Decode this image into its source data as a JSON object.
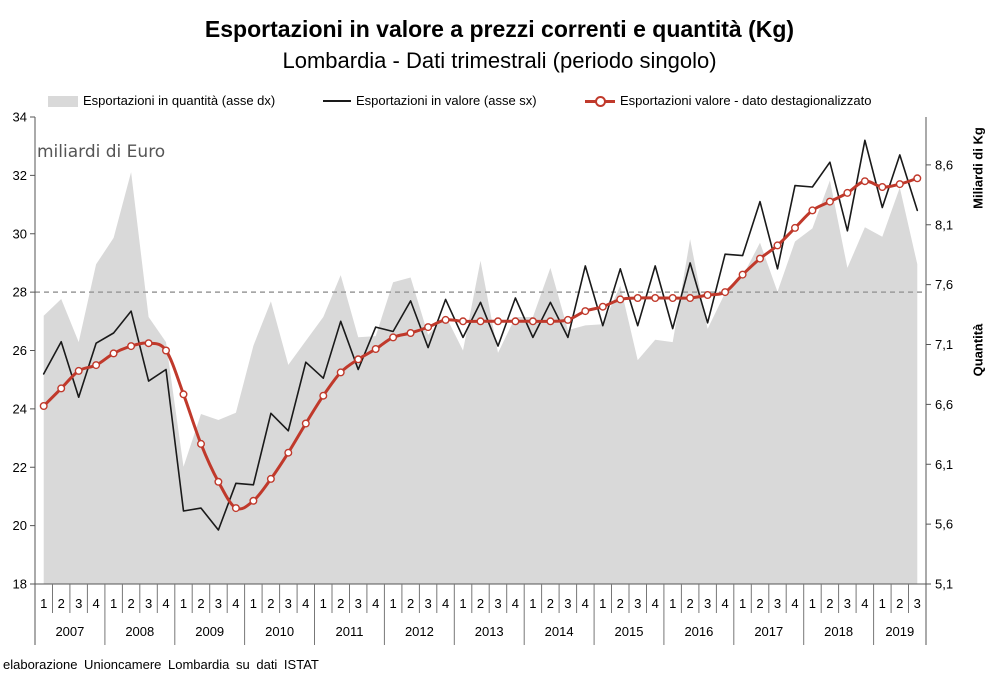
{
  "chart_data": {
    "type": "line",
    "title": "Esportazioni in valore a prezzi correnti e quantità (Kg)",
    "subtitle": "Lombardia - Dati trimestrali (periodo singolo)",
    "legend": {
      "placement": "top"
    },
    "grid": false,
    "y_left": {
      "label": "miliardi di Euro",
      "range": [
        18,
        34
      ],
      "ticks": [
        "18",
        "20",
        "22",
        "24",
        "26",
        "28",
        "30",
        "32",
        "34"
      ]
    },
    "y_right": {
      "labels": [
        "Miliardi di Kg",
        "Quantità"
      ],
      "range": [
        5.1,
        9.0
      ],
      "ticks": [
        "5,1",
        "5,6",
        "6,1",
        "6,6",
        "7,1",
        "7,6",
        "8,1",
        "8,6"
      ]
    },
    "reference_line": {
      "axis": "left",
      "value": 28,
      "style": "dashed",
      "color": "#9a9a9a"
    },
    "x": {
      "years": [
        {
          "label": "2007",
          "quarters": [
            "1",
            "2",
            "3",
            "4"
          ]
        },
        {
          "label": "2008",
          "quarters": [
            "1",
            "2",
            "3",
            "4"
          ]
        },
        {
          "label": "2009",
          "quarters": [
            "1",
            "2",
            "3",
            "4"
          ]
        },
        {
          "label": "2010",
          "quarters": [
            "1",
            "2",
            "3",
            "4"
          ]
        },
        {
          "label": "2011",
          "quarters": [
            "1",
            "2",
            "3",
            "4"
          ]
        },
        {
          "label": "2012",
          "quarters": [
            "1",
            "2",
            "3",
            "4"
          ]
        },
        {
          "label": "2013",
          "quarters": [
            "1",
            "2",
            "3",
            "4"
          ]
        },
        {
          "label": "2014",
          "quarters": [
            "1",
            "2",
            "3",
            "4"
          ]
        },
        {
          "label": "2015",
          "quarters": [
            "1",
            "2",
            "3",
            "4"
          ]
        },
        {
          "label": "2016",
          "quarters": [
            "1",
            "2",
            "3",
            "4"
          ]
        },
        {
          "label": "2017",
          "quarters": [
            "1",
            "2",
            "3",
            "4"
          ]
        },
        {
          "label": "2018",
          "quarters": [
            "1",
            "2",
            "3",
            "4"
          ]
        },
        {
          "label": "2019",
          "quarters": [
            "1",
            "2",
            "3"
          ]
        }
      ]
    },
    "series": [
      {
        "name": "Esportazioni in quantità (asse dx)",
        "type": "area",
        "axis": "right",
        "color": "#d9d9d9",
        "values": [
          7.34,
          7.48,
          7.12,
          7.77,
          7.99,
          8.54,
          7.33,
          7.12,
          6.08,
          6.52,
          6.47,
          6.53,
          7.09,
          7.46,
          6.93,
          7.13,
          7.33,
          7.68,
          7.16,
          7.17,
          7.62,
          7.66,
          7.18,
          7.34,
          7.05,
          7.8,
          7.03,
          7.33,
          7.33,
          7.74,
          7.22,
          7.26,
          7.27,
          7.59,
          6.97,
          7.14,
          7.12,
          7.98,
          7.23,
          7.53,
          7.67,
          7.95,
          7.54,
          7.96,
          8.07,
          8.47,
          7.74,
          8.08,
          8.0,
          8.41,
          7.77
        ]
      },
      {
        "name": "Esportazioni in valore (asse sx)",
        "type": "line",
        "axis": "left",
        "color": "#1a1a1a",
        "values": [
          25.2,
          26.3,
          24.4,
          26.25,
          26.6,
          27.35,
          24.95,
          25.35,
          20.5,
          20.6,
          19.85,
          21.45,
          21.4,
          23.85,
          23.25,
          25.6,
          25.05,
          27.0,
          25.35,
          26.8,
          26.65,
          27.7,
          26.1,
          27.75,
          26.45,
          27.65,
          26.15,
          27.8,
          26.45,
          27.65,
          26.45,
          28.9,
          26.85,
          28.8,
          26.85,
          28.9,
          26.75,
          29.0,
          26.95,
          29.3,
          29.25,
          31.1,
          28.8,
          31.65,
          31.6,
          32.45,
          30.1,
          33.2,
          30.9,
          32.7,
          30.8
        ]
      },
      {
        "name": "Esportazioni valore - dato destagionalizzato",
        "type": "line",
        "axis": "left",
        "color": "#c0392b",
        "marker": "circle",
        "smooth": true,
        "values": [
          24.1,
          24.7,
          25.3,
          25.5,
          25.9,
          26.15,
          26.25,
          26.0,
          24.5,
          22.8,
          21.5,
          20.6,
          20.85,
          21.6,
          22.5,
          23.5,
          24.45,
          25.25,
          25.7,
          26.05,
          26.45,
          26.6,
          26.8,
          27.05,
          27.0,
          27.0,
          27.0,
          27.0,
          27.0,
          27.0,
          27.05,
          27.35,
          27.5,
          27.75,
          27.8,
          27.8,
          27.8,
          27.8,
          27.9,
          28.0,
          28.6,
          29.15,
          29.6,
          30.2,
          30.8,
          31.1,
          31.4,
          31.8,
          31.6,
          31.7,
          31.9
        ]
      }
    ]
  },
  "footer": {
    "source": "elaborazione Unioncamere Lombardia su dati ISTAT"
  }
}
